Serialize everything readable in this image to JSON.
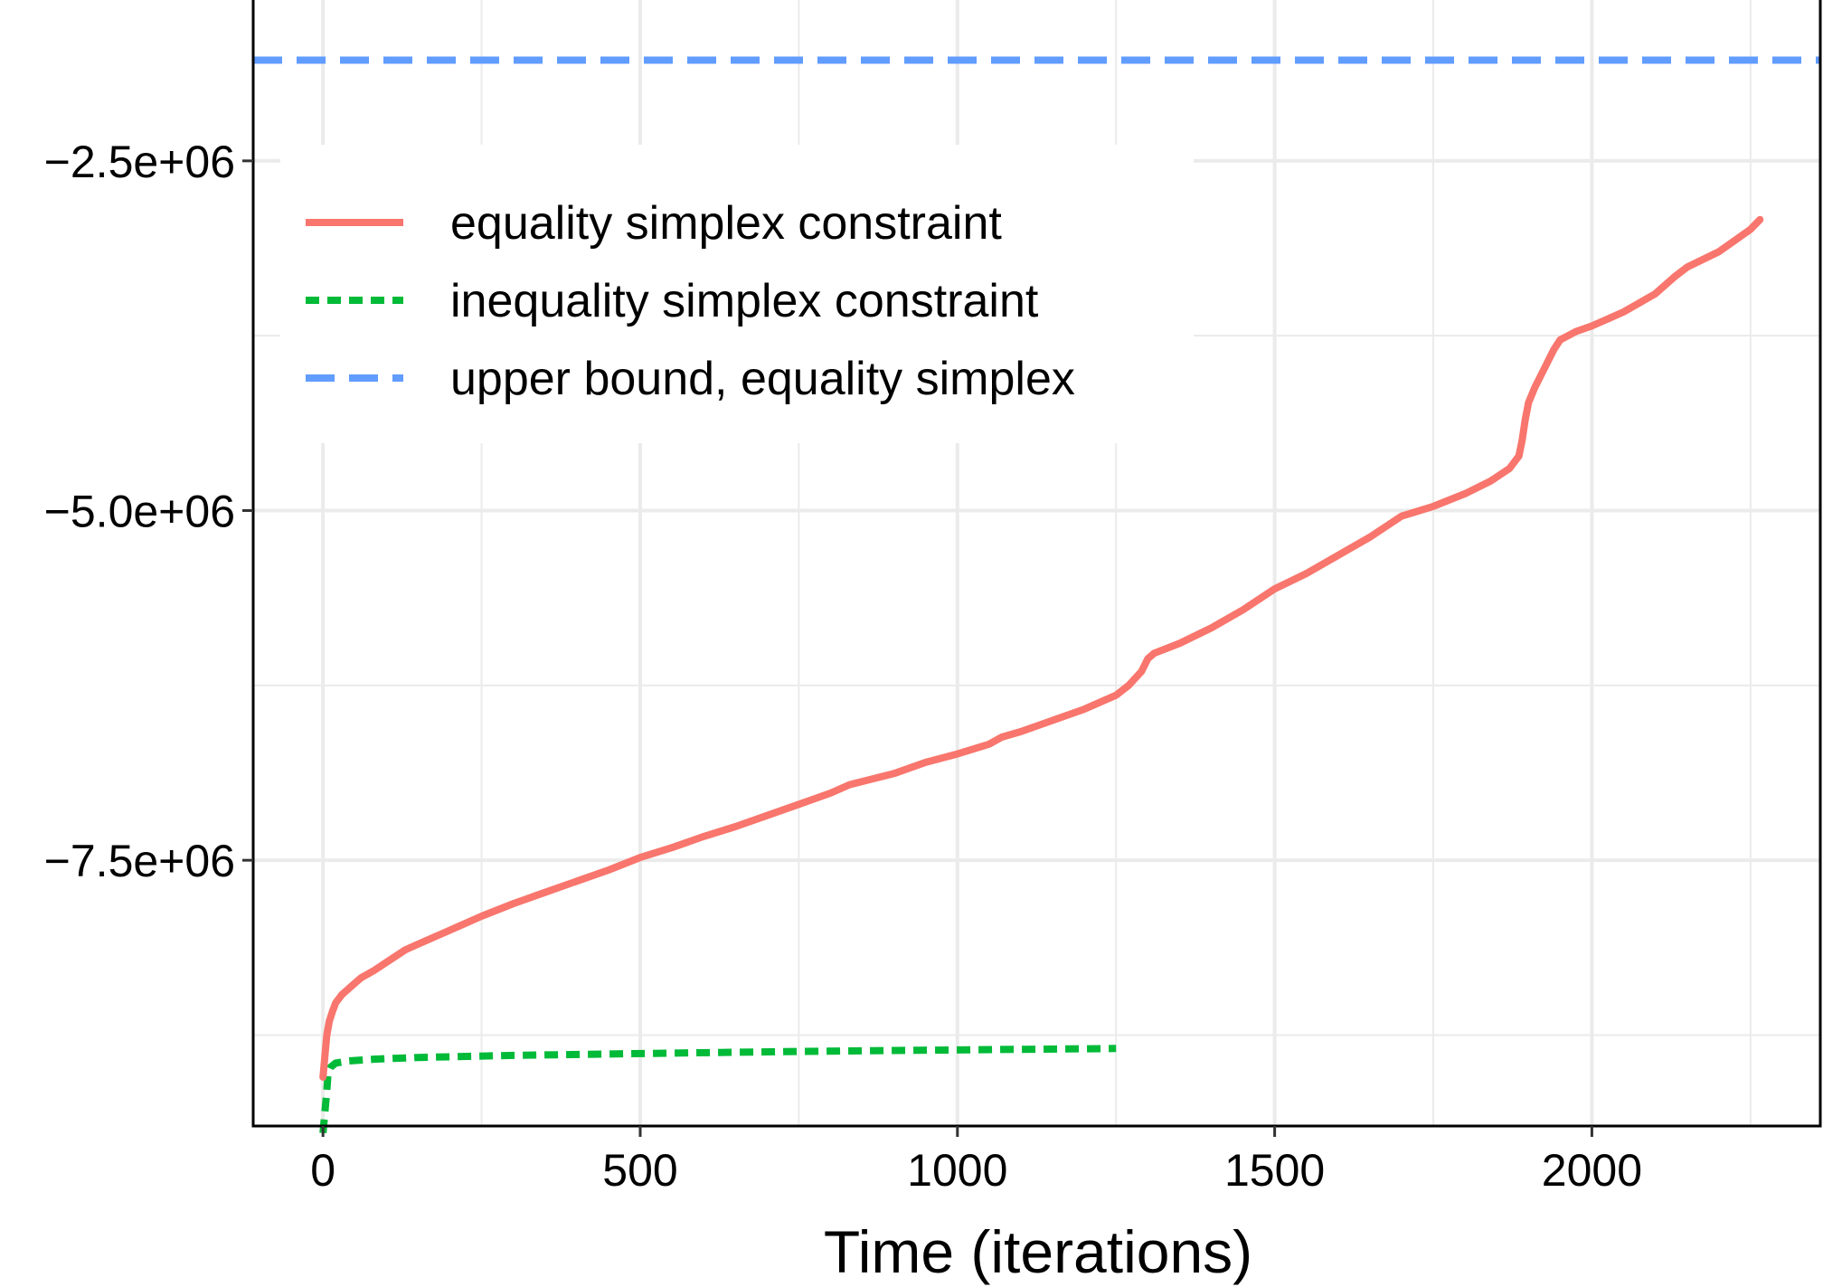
{
  "chart_data": {
    "type": "line",
    "title": "",
    "xlabel": "Time (iterations)",
    "ylabel": "",
    "xlim": [
      -110,
      2360
    ],
    "ylim": [
      -9400000,
      -1350000
    ],
    "x_ticks": [
      0,
      500,
      1000,
      1500,
      2000
    ],
    "x_tick_labels": [
      "0",
      "500",
      "1000",
      "1500",
      "2000"
    ],
    "y_ticks": [
      -7500000,
      -5000000,
      -2500000
    ],
    "y_tick_labels": [
      "−7.5e+06",
      "−5.0e+06",
      "−2.5e+06"
    ],
    "grid": true,
    "legend_position": "top-left",
    "series": [
      {
        "name": "equality simplex constraint",
        "color": "#F8766D",
        "dash": "solid",
        "x": [
          0,
          3,
          6,
          10,
          15,
          20,
          30,
          45,
          60,
          80,
          100,
          130,
          150,
          200,
          250,
          300,
          350,
          400,
          450,
          500,
          550,
          600,
          650,
          700,
          750,
          800,
          830,
          900,
          950,
          1000,
          1050,
          1070,
          1100,
          1150,
          1200,
          1250,
          1270,
          1290,
          1300,
          1310,
          1350,
          1400,
          1450,
          1480,
          1500,
          1550,
          1600,
          1650,
          1700,
          1750,
          1800,
          1840,
          1870,
          1885,
          1890,
          1895,
          1900,
          1910,
          1920,
          1940,
          1950,
          1975,
          2000,
          2050,
          2100,
          2130,
          2150,
          2200,
          2250,
          2265
        ],
        "y": [
          -9050000,
          -8900000,
          -8750000,
          -8650000,
          -8580000,
          -8520000,
          -8460000,
          -8400000,
          -8340000,
          -8290000,
          -8230000,
          -8140000,
          -8100000,
          -8000000,
          -7900000,
          -7810000,
          -7730000,
          -7650000,
          -7570000,
          -7480000,
          -7410000,
          -7330000,
          -7260000,
          -7180000,
          -7100000,
          -7020000,
          -6960000,
          -6880000,
          -6800000,
          -6740000,
          -6670000,
          -6620000,
          -6580000,
          -6500000,
          -6420000,
          -6320000,
          -6250000,
          -6150000,
          -6060000,
          -6020000,
          -5950000,
          -5840000,
          -5710000,
          -5620000,
          -5560000,
          -5450000,
          -5320000,
          -5190000,
          -5040000,
          -4970000,
          -4880000,
          -4790000,
          -4700000,
          -4610000,
          -4500000,
          -4350000,
          -4230000,
          -4120000,
          -4030000,
          -3850000,
          -3780000,
          -3720000,
          -3680000,
          -3580000,
          -3450000,
          -3330000,
          -3260000,
          -3150000,
          -2990000,
          -2920000
        ]
      },
      {
        "name": "inequality simplex constraint",
        "color": "#00BA38",
        "dash": "dotted",
        "x": [
          0,
          3,
          6,
          8,
          12,
          20,
          40,
          80,
          150,
          300,
          500,
          700,
          900,
          1100,
          1250
        ],
        "y": [
          -9450000,
          -9300000,
          -9150000,
          -9020000,
          -8980000,
          -8950000,
          -8935000,
          -8922000,
          -8910000,
          -8895000,
          -8882000,
          -8870000,
          -8860000,
          -8852000,
          -8846000
        ]
      },
      {
        "name": "upper bound, equality simplex",
        "color": "#619CFF",
        "dash": "dashed",
        "x": [
          -110,
          2360
        ],
        "y": [
          -1780000,
          -1780000
        ]
      }
    ]
  }
}
